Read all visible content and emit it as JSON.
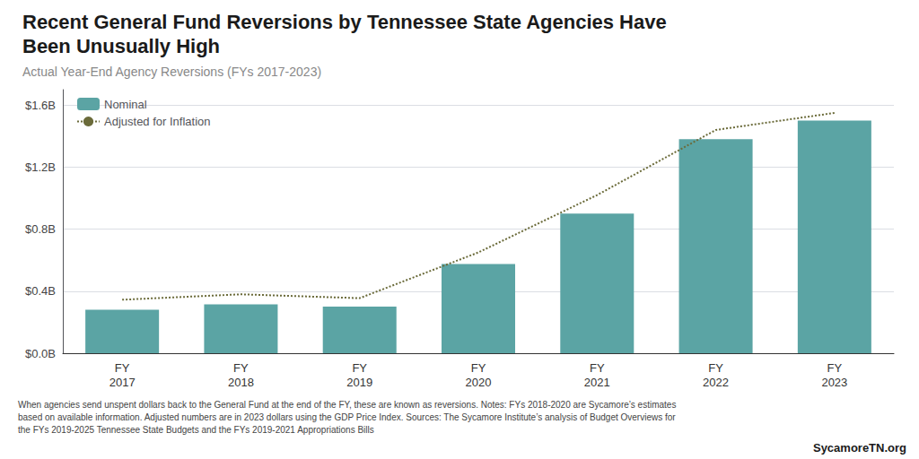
{
  "chart_data": {
    "type": "bar",
    "title": "Recent General Fund Reversions by Tennessee State Agencies Have\nBeen Unusually High",
    "subtitle": "Actual Year-End Agency Reversions (FYs 2017-2023)",
    "categories": [
      "FY\n2017",
      "FY\n2018",
      "FY\n2019",
      "FY\n2020",
      "FY\n2021",
      "FY\n2022",
      "FY\n2023"
    ],
    "series": [
      {
        "name": "Nominal",
        "type": "bar",
        "color": "#5ba4a4",
        "values": [
          0.28,
          0.315,
          0.3,
          0.575,
          0.9,
          1.38,
          1.5
        ]
      },
      {
        "name": "Adjusted for Inflation",
        "type": "line",
        "color": "#6b6b3a",
        "line_style": "dotted",
        "values": [
          0.345,
          0.38,
          0.355,
          0.65,
          1.02,
          1.44,
          1.55
        ]
      }
    ],
    "ylim": [
      0,
      1.7
    ],
    "yticks": [
      {
        "value": 0.0,
        "label": "$0.0B"
      },
      {
        "value": 0.4,
        "label": "$0.4B"
      },
      {
        "value": 0.8,
        "label": "$0.8B"
      },
      {
        "value": 1.2,
        "label": "$1.2B"
      },
      {
        "value": 1.6,
        "label": "$1.6B"
      }
    ],
    "grid": true,
    "legend": "upper left",
    "annotations": [
      "When agencies send unspent dollars back to the General Fund at the end of the FY, these are known as reversions. Notes: FYs 2018-2020 are Sycamore’s estimates\nbased on available information. Adjusted numbers are in 2023 dollars using the GDP Price Index. Sources: The Sycamore Institute’s analysis of Budget Overviews for\nthe FYs 2019-2025 Tennessee State Budgets and the FYs 2019-2021 Appropriations Bills",
      "SycamoreTN.org"
    ]
  }
}
